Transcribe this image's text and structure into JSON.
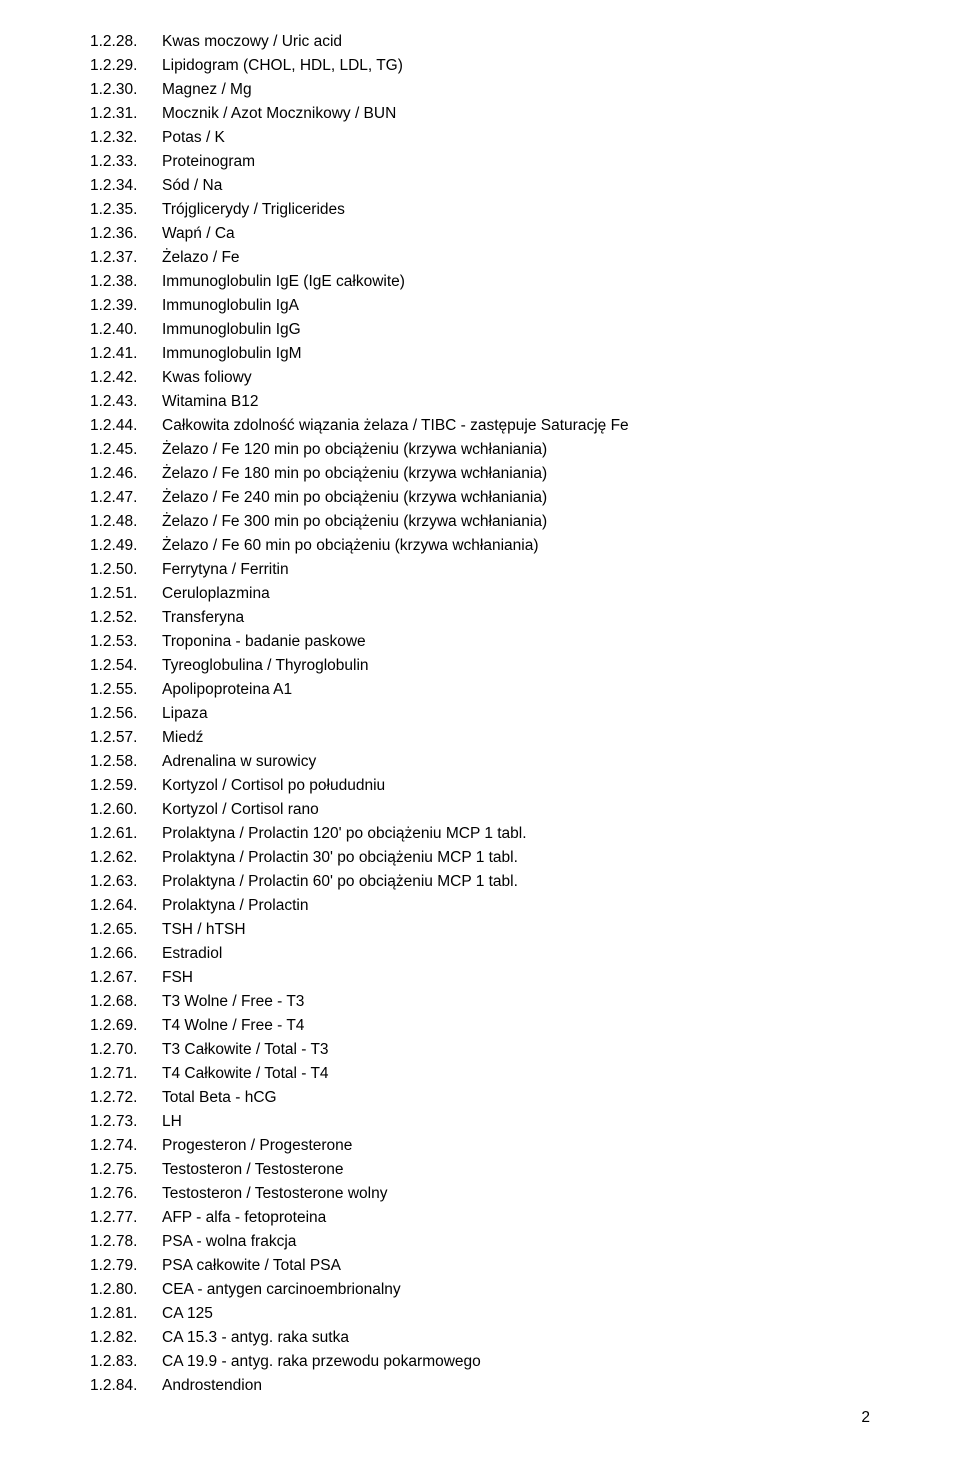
{
  "items": [
    {
      "num": "1.2.28.",
      "text": "Kwas moczowy / Uric acid"
    },
    {
      "num": "1.2.29.",
      "text": "Lipidogram (CHOL, HDL, LDL, TG)"
    },
    {
      "num": "1.2.30.",
      "text": "Magnez / Mg"
    },
    {
      "num": "1.2.31.",
      "text": "Mocznik / Azot Mocznikowy / BUN"
    },
    {
      "num": "1.2.32.",
      "text": "Potas / K"
    },
    {
      "num": "1.2.33.",
      "text": "Proteinogram"
    },
    {
      "num": "1.2.34.",
      "text": "Sód / Na"
    },
    {
      "num": "1.2.35.",
      "text": "Trójglicerydy / Triglicerides"
    },
    {
      "num": "1.2.36.",
      "text": "Wapń / Ca"
    },
    {
      "num": "1.2.37.",
      "text": "Żelazo / Fe"
    },
    {
      "num": "1.2.38.",
      "text": "Immunoglobulin IgE (IgE całkowite)"
    },
    {
      "num": "1.2.39.",
      "text": "Immunoglobulin IgA"
    },
    {
      "num": "1.2.40.",
      "text": "Immunoglobulin IgG"
    },
    {
      "num": "1.2.41.",
      "text": "Immunoglobulin IgM"
    },
    {
      "num": "1.2.42.",
      "text": "Kwas foliowy"
    },
    {
      "num": "1.2.43.",
      "text": "Witamina B12"
    },
    {
      "num": "1.2.44.",
      "text": "Całkowita zdolność wiązania żelaza / TIBC - zastępuje Saturację Fe"
    },
    {
      "num": "1.2.45.",
      "text": "Żelazo / Fe 120 min po obciążeniu (krzywa wchłaniania)"
    },
    {
      "num": "1.2.46.",
      "text": "Żelazo / Fe 180 min po obciążeniu (krzywa wchłaniania)"
    },
    {
      "num": "1.2.47.",
      "text": "Żelazo / Fe 240 min po obciążeniu (krzywa wchłaniania)"
    },
    {
      "num": "1.2.48.",
      "text": "Żelazo / Fe 300 min po obciążeniu (krzywa wchłaniania)"
    },
    {
      "num": "1.2.49.",
      "text": "Żelazo / Fe 60 min po obciążeniu (krzywa wchłaniania)"
    },
    {
      "num": "1.2.50.",
      "text": "Ferrytyna / Ferritin"
    },
    {
      "num": "1.2.51.",
      "text": "Ceruloplazmina"
    },
    {
      "num": "1.2.52.",
      "text": "Transferyna"
    },
    {
      "num": "1.2.53.",
      "text": "Troponina - badanie paskowe"
    },
    {
      "num": "1.2.54.",
      "text": "Tyreoglobulina / Thyroglobulin"
    },
    {
      "num": "1.2.55.",
      "text": "Apolipoproteina A1"
    },
    {
      "num": "1.2.56.",
      "text": "Lipaza"
    },
    {
      "num": "1.2.57.",
      "text": "Miedź"
    },
    {
      "num": "1.2.58.",
      "text": "Adrenalina w surowicy"
    },
    {
      "num": "1.2.59.",
      "text": "Kortyzol / Cortisol po połududniu"
    },
    {
      "num": "1.2.60.",
      "text": "Kortyzol / Cortisol rano"
    },
    {
      "num": "1.2.61.",
      "text": "Prolaktyna / Prolactin 120' po obciążeniu MCP 1 tabl."
    },
    {
      "num": "1.2.62.",
      "text": "Prolaktyna / Prolactin 30' po obciążeniu MCP 1 tabl."
    },
    {
      "num": "1.2.63.",
      "text": "Prolaktyna / Prolactin 60' po obciążeniu MCP 1 tabl."
    },
    {
      "num": "1.2.64.",
      "text": "Prolaktyna / Prolactin"
    },
    {
      "num": "1.2.65.",
      "text": "TSH / hTSH"
    },
    {
      "num": "1.2.66.",
      "text": "Estradiol"
    },
    {
      "num": "1.2.67.",
      "text": "FSH"
    },
    {
      "num": "1.2.68.",
      "text": "T3 Wolne / Free - T3"
    },
    {
      "num": "1.2.69.",
      "text": "T4 Wolne / Free - T4"
    },
    {
      "num": "1.2.70.",
      "text": "T3 Całkowite / Total - T3"
    },
    {
      "num": "1.2.71.",
      "text": "T4 Całkowite / Total - T4"
    },
    {
      "num": "1.2.72.",
      "text": "Total Beta - hCG"
    },
    {
      "num": "1.2.73.",
      "text": "LH"
    },
    {
      "num": "1.2.74.",
      "text": "Progesteron / Progesterone"
    },
    {
      "num": "1.2.75.",
      "text": "Testosteron / Testosterone"
    },
    {
      "num": "1.2.76.",
      "text": "Testosteron / Testosterone wolny"
    },
    {
      "num": "1.2.77.",
      "text": "AFP - alfa - fetoproteina"
    },
    {
      "num": "1.2.78.",
      "text": "PSA - wolna frakcja"
    },
    {
      "num": "1.2.79.",
      "text": "PSA całkowite / Total PSA"
    },
    {
      "num": "1.2.80.",
      "text": "CEA - antygen carcinoembrionalny"
    },
    {
      "num": "1.2.81.",
      "text": "CA 125"
    },
    {
      "num": "1.2.82.",
      "text": "CA 15.3 - antyg. raka sutka"
    },
    {
      "num": "1.2.83.",
      "text": "CA 19.9 - antyg. raka przewodu pokarmowego"
    },
    {
      "num": "1.2.84.",
      "text": "Androstendion"
    }
  ],
  "page_number": "2"
}
